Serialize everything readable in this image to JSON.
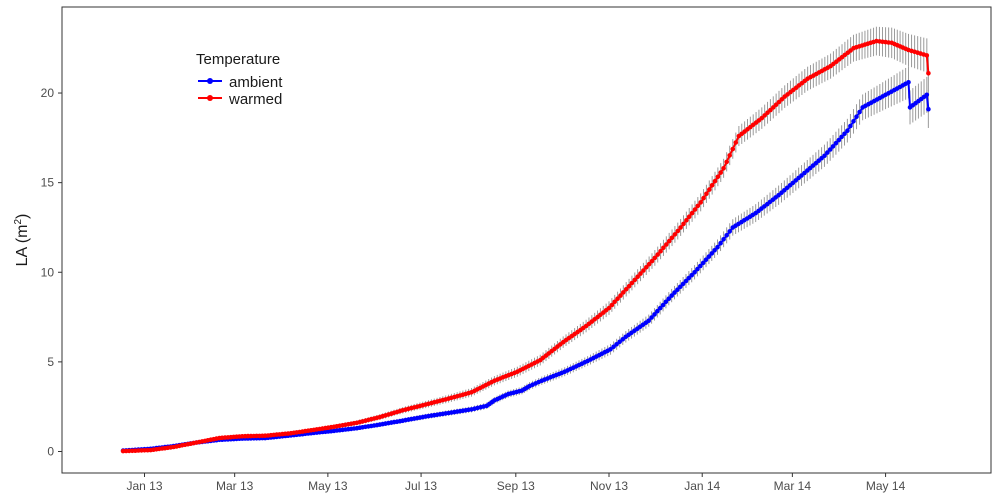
{
  "chart_data": {
    "type": "line",
    "title": "",
    "xlabel": "",
    "ylabel": "LA (m²)",
    "ylabel_parts": {
      "main": "LA (m",
      "sup": "2",
      "close": ")"
    },
    "x_ticks": [
      "Jan 13",
      "Mar 13",
      "May 13",
      "Jul 13",
      "Sep 13",
      "Nov 13",
      "Jan 14",
      "Mar 14",
      "May 14"
    ],
    "x_tick_dates": [
      "2013-01-01",
      "2013-03-01",
      "2013-05-01",
      "2013-07-01",
      "2013-09-01",
      "2013-11-01",
      "2014-01-01",
      "2014-03-01",
      "2014-05-01"
    ],
    "xlim": [
      "2012-11-08",
      "2014-07-09"
    ],
    "ylim": [
      -1.2,
      24.8
    ],
    "y_ticks": [
      0,
      5,
      10,
      15,
      20
    ],
    "grid": false,
    "legend": {
      "title": "Temperature",
      "position": "top-left"
    },
    "series": [
      {
        "name": "ambient",
        "color": "#0000FF",
        "x": [
          "2012-12-18",
          "2013-01-05",
          "2013-01-20",
          "2013-02-04",
          "2013-02-19",
          "2013-03-06",
          "2013-03-21",
          "2013-04-05",
          "2013-04-20",
          "2013-05-05",
          "2013-05-20",
          "2013-06-04",
          "2013-06-19",
          "2013-07-04",
          "2013-07-19",
          "2013-08-03",
          "2013-08-13",
          "2013-08-18",
          "2013-08-27",
          "2013-09-05",
          "2013-09-10",
          "2013-09-18",
          "2013-10-03",
          "2013-10-18",
          "2013-11-02",
          "2013-11-12",
          "2013-11-27",
          "2013-12-12",
          "2013-12-27",
          "2014-01-11",
          "2014-01-21",
          "2014-02-05",
          "2014-02-20",
          "2014-03-07",
          "2014-03-22",
          "2014-04-06",
          "2014-04-16",
          "2014-05-01",
          "2014-05-16",
          "2014-05-17",
          "2014-05-28",
          "2014-05-29"
        ],
        "values": [
          0.05,
          0.15,
          0.3,
          0.5,
          0.65,
          0.72,
          0.75,
          0.88,
          1.02,
          1.15,
          1.3,
          1.5,
          1.72,
          1.95,
          2.15,
          2.35,
          2.55,
          2.85,
          3.2,
          3.4,
          3.65,
          3.95,
          4.45,
          5.05,
          5.7,
          6.4,
          7.3,
          8.7,
          10.0,
          11.4,
          12.5,
          13.3,
          14.3,
          15.4,
          16.5,
          17.9,
          19.2,
          19.9,
          20.6,
          19.2,
          19.9,
          19.1
        ],
        "error": [
          0.06,
          0.06,
          0.07,
          0.08,
          0.08,
          0.09,
          0.09,
          0.1,
          0.1,
          0.11,
          0.12,
          0.13,
          0.14,
          0.15,
          0.16,
          0.17,
          0.18,
          0.19,
          0.2,
          0.21,
          0.22,
          0.23,
          0.25,
          0.27,
          0.3,
          0.32,
          0.34,
          0.37,
          0.4,
          0.43,
          0.46,
          0.5,
          0.54,
          0.58,
          0.62,
          0.66,
          0.72,
          0.8,
          0.9,
          0.95,
          1.0,
          1.05
        ]
      },
      {
        "name": "warmed",
        "color": "#FF0000",
        "x": [
          "2012-12-18",
          "2013-01-05",
          "2013-01-20",
          "2013-02-04",
          "2013-02-19",
          "2013-03-06",
          "2013-03-21",
          "2013-04-05",
          "2013-04-20",
          "2013-05-05",
          "2013-05-20",
          "2013-06-04",
          "2013-06-19",
          "2013-07-04",
          "2013-07-19",
          "2013-08-03",
          "2013-08-18",
          "2013-09-02",
          "2013-09-17",
          "2013-10-02",
          "2013-10-17",
          "2013-11-01",
          "2013-11-16",
          "2013-12-01",
          "2013-12-16",
          "2013-12-31",
          "2014-01-15",
          "2014-01-25",
          "2014-02-09",
          "2014-02-24",
          "2014-03-11",
          "2014-03-26",
          "2014-04-10",
          "2014-04-25",
          "2014-05-05",
          "2014-05-16",
          "2014-05-28",
          "2014-05-29"
        ],
        "values": [
          0.02,
          0.08,
          0.25,
          0.5,
          0.75,
          0.85,
          0.88,
          1.0,
          1.18,
          1.38,
          1.6,
          1.92,
          2.3,
          2.62,
          2.95,
          3.3,
          3.95,
          4.45,
          5.1,
          6.1,
          7.0,
          8.0,
          9.4,
          10.8,
          12.3,
          13.9,
          15.8,
          17.6,
          18.6,
          19.8,
          20.8,
          21.5,
          22.5,
          22.9,
          22.8,
          22.4,
          22.1,
          21.1
        ],
        "error": [
          0.05,
          0.05,
          0.06,
          0.07,
          0.08,
          0.09,
          0.1,
          0.11,
          0.12,
          0.13,
          0.14,
          0.16,
          0.18,
          0.2,
          0.22,
          0.24,
          0.26,
          0.28,
          0.3,
          0.32,
          0.35,
          0.38,
          0.41,
          0.44,
          0.47,
          0.5,
          0.53,
          0.56,
          0.6,
          0.63,
          0.67,
          0.7,
          0.75,
          0.8,
          0.85,
          0.9,
          0.95,
          1.0
        ]
      }
    ]
  }
}
